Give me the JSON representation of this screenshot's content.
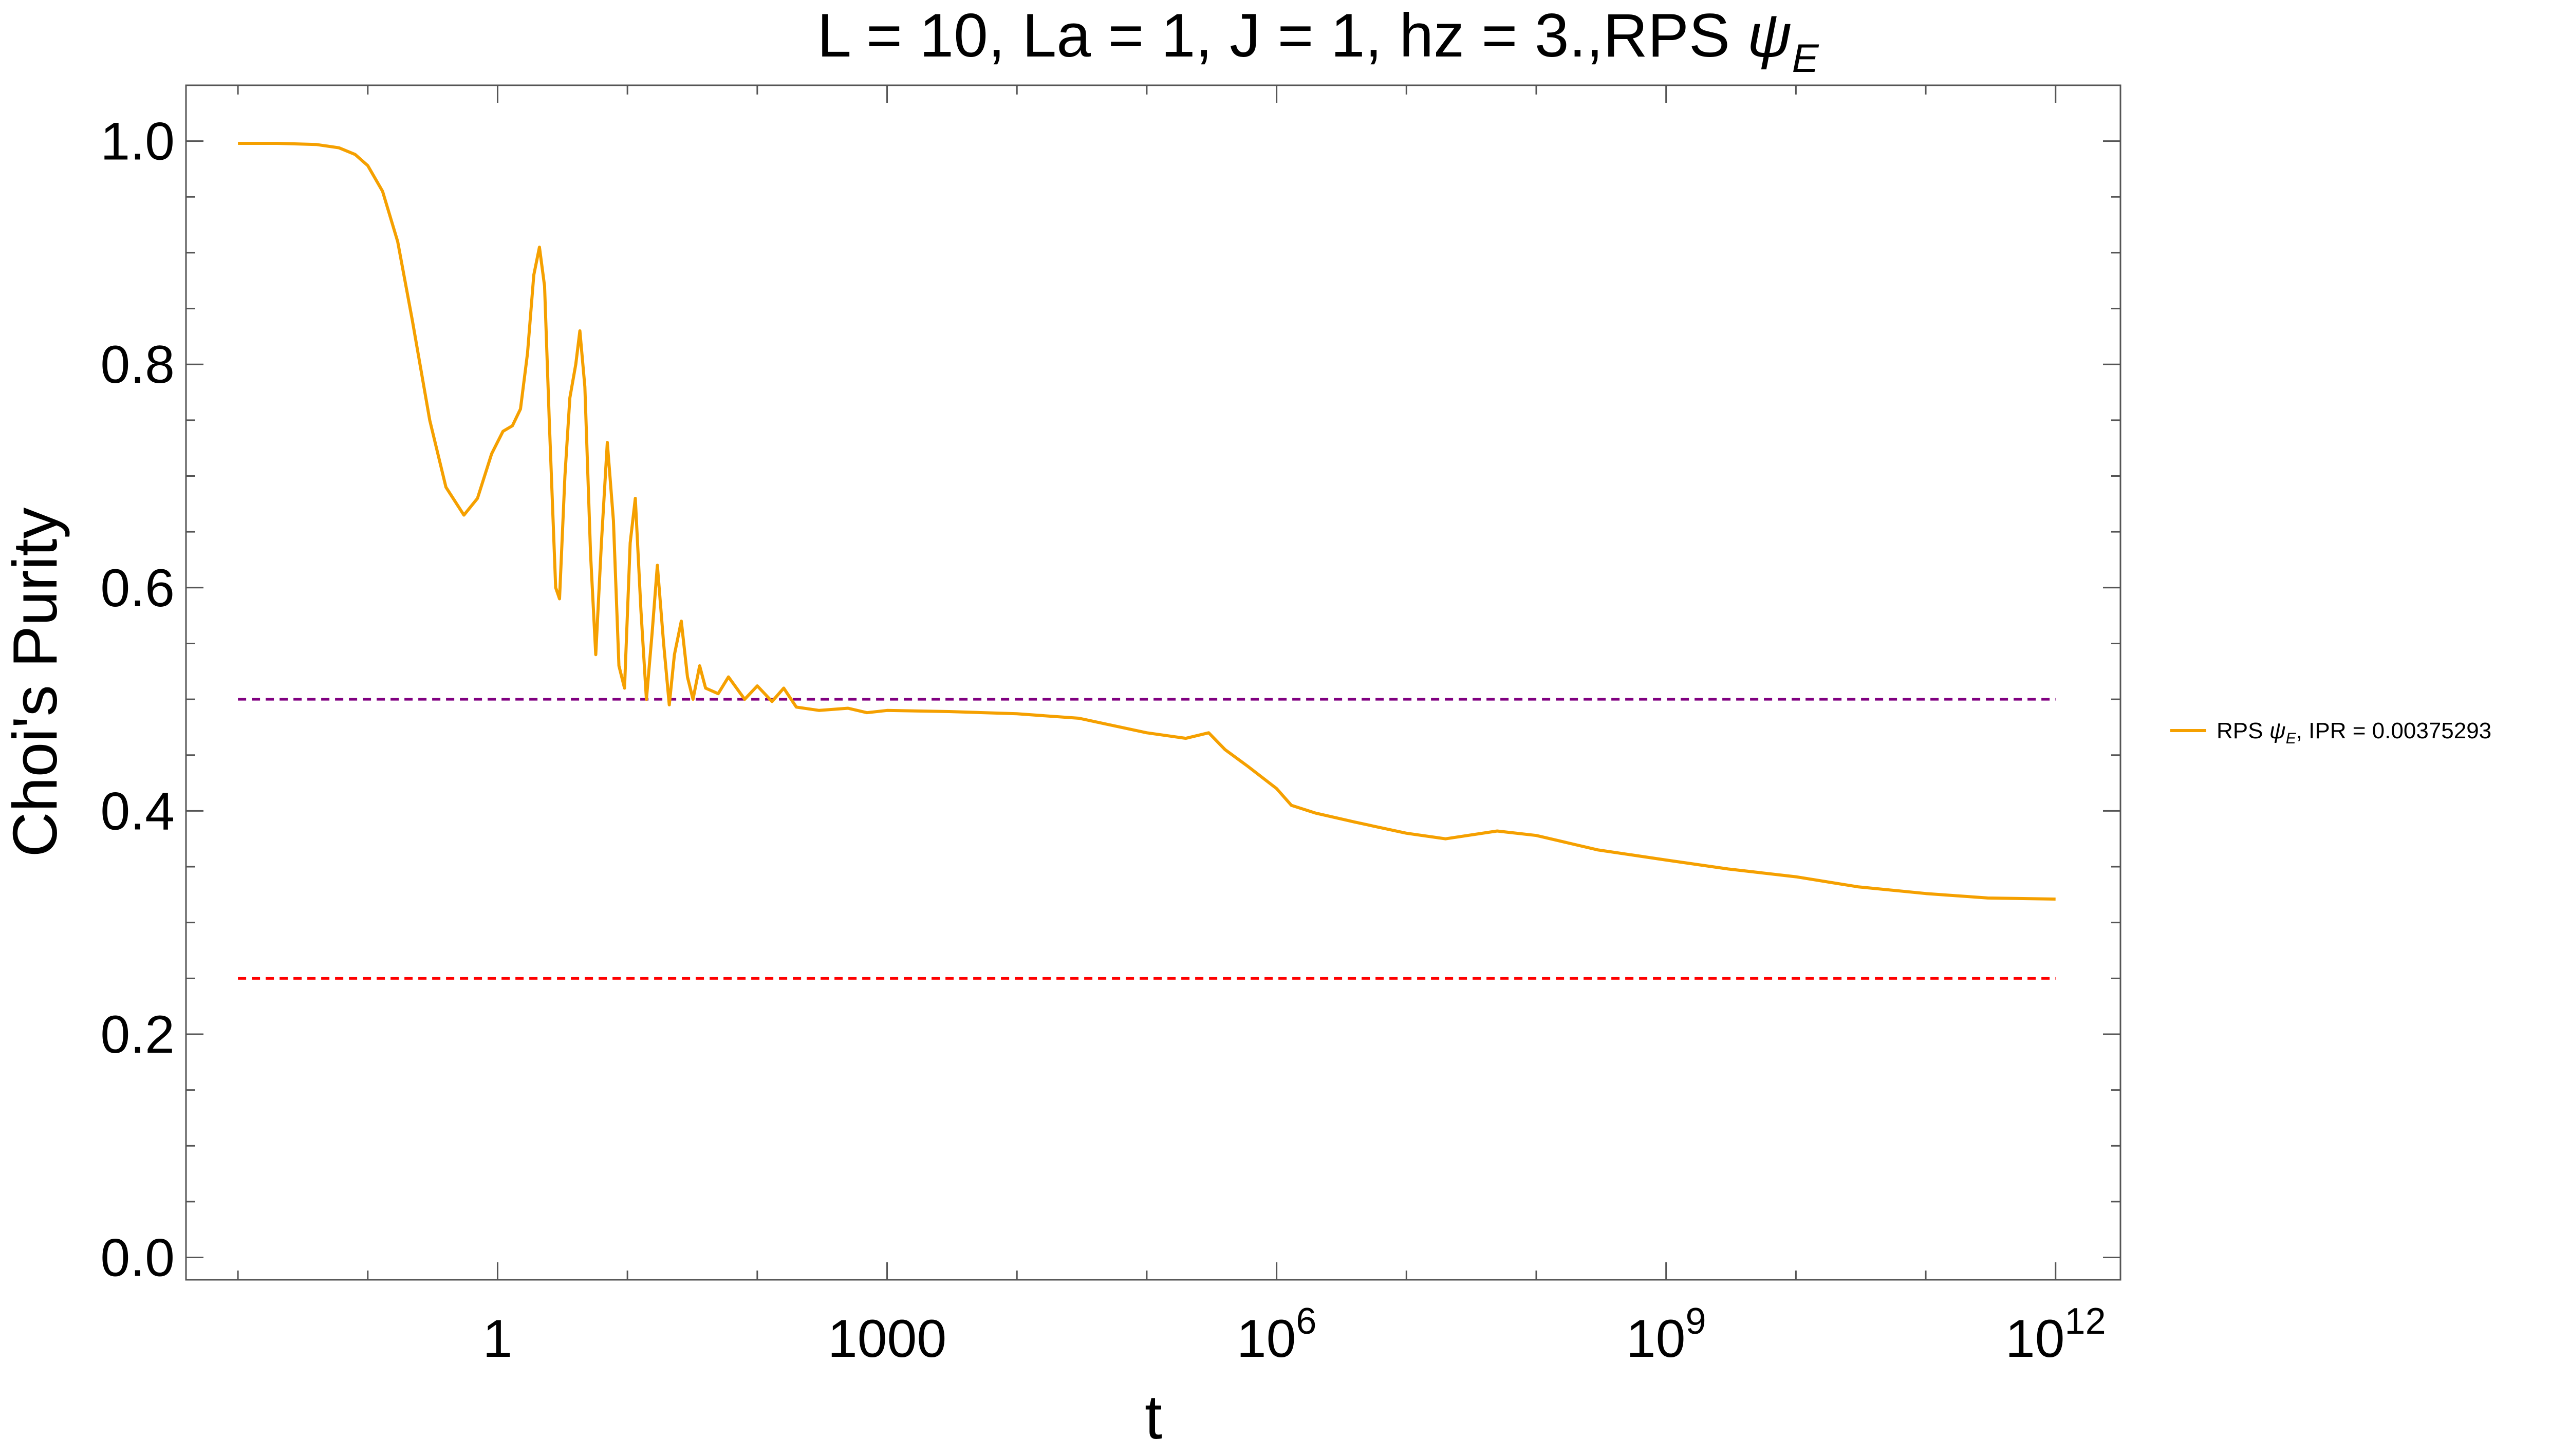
{
  "chart_data": {
    "type": "line",
    "title": {
      "prefix": "L = 10, La = 1, J = 1, hz = 3.,RPS ",
      "symbol": "ψ",
      "subscript": "E"
    },
    "xlabel": "t",
    "ylabel": "Choi's Purity",
    "x_scale": "log10",
    "xlim": [
      0.00398,
      3160000000000.0
    ],
    "ylim": [
      -0.02,
      1.05
    ],
    "x_ticks": [
      {
        "value": 1,
        "base": "1",
        "exp": ""
      },
      {
        "value": 1000,
        "base": "1000",
        "exp": ""
      },
      {
        "value": 1000000,
        "base": "10",
        "exp": "6"
      },
      {
        "value": 1000000000,
        "base": "10",
        "exp": "9"
      },
      {
        "value": 1000000000000,
        "base": "10",
        "exp": "12"
      }
    ],
    "y_ticks": [
      {
        "value": 0.0,
        "label": "0.0"
      },
      {
        "value": 0.2,
        "label": "0.2"
      },
      {
        "value": 0.4,
        "label": "0.4"
      },
      {
        "value": 0.6,
        "label": "0.6"
      },
      {
        "value": 0.8,
        "label": "0.8"
      },
      {
        "value": 1.0,
        "label": "1.0"
      }
    ],
    "grid": false,
    "legend": {
      "placement": "right",
      "prefix": "RPS ",
      "symbol": "ψ",
      "subscript": "E",
      "suffix": ", IPR = 0.00375293"
    },
    "series": [
      {
        "color": "#f5a000",
        "points": [
          [
            0.01,
            0.998
          ],
          [
            0.02,
            0.998
          ],
          [
            0.04,
            0.997
          ],
          [
            0.06,
            0.994
          ],
          [
            0.08,
            0.988
          ],
          [
            0.1,
            0.978
          ],
          [
            0.13,
            0.955
          ],
          [
            0.17,
            0.91
          ],
          [
            0.22,
            0.84
          ],
          [
            0.3,
            0.75
          ],
          [
            0.4,
            0.69
          ],
          [
            0.55,
            0.665
          ],
          [
            0.7,
            0.68
          ],
          [
            0.9,
            0.72
          ],
          [
            1.1,
            0.74
          ],
          [
            1.3,
            0.745
          ],
          [
            1.5,
            0.76
          ],
          [
            1.7,
            0.81
          ],
          [
            1.9,
            0.88
          ],
          [
            2.1,
            0.905
          ],
          [
            2.3,
            0.87
          ],
          [
            2.5,
            0.75
          ],
          [
            2.8,
            0.6
          ],
          [
            3.0,
            0.59
          ],
          [
            3.3,
            0.7
          ],
          [
            3.6,
            0.77
          ],
          [
            4.0,
            0.8
          ],
          [
            4.3,
            0.83
          ],
          [
            4.7,
            0.78
          ],
          [
            5.2,
            0.63
          ],
          [
            5.7,
            0.54
          ],
          [
            6.3,
            0.64
          ],
          [
            7.0,
            0.73
          ],
          [
            7.8,
            0.66
          ],
          [
            8.6,
            0.53
          ],
          [
            9.5,
            0.51
          ],
          [
            10.5,
            0.64
          ],
          [
            11.5,
            0.68
          ],
          [
            12.7,
            0.58
          ],
          [
            14,
            0.5
          ],
          [
            15.5,
            0.56
          ],
          [
            17,
            0.62
          ],
          [
            19,
            0.55
          ],
          [
            21,
            0.495
          ],
          [
            23,
            0.54
          ],
          [
            26,
            0.57
          ],
          [
            29,
            0.52
          ],
          [
            32,
            0.5
          ],
          [
            36,
            0.53
          ],
          [
            40,
            0.51
          ],
          [
            50,
            0.505
          ],
          [
            60,
            0.52
          ],
          [
            80,
            0.5
          ],
          [
            100,
            0.512
          ],
          [
            130,
            0.498
          ],
          [
            160,
            0.51
          ],
          [
            200,
            0.493
          ],
          [
            300,
            0.49
          ],
          [
            500,
            0.492
          ],
          [
            700,
            0.488
          ],
          [
            1000,
            0.49
          ],
          [
            3000,
            0.489
          ],
          [
            10000,
            0.487
          ],
          [
            30000,
            0.483
          ],
          [
            100000,
            0.47
          ],
          [
            200000,
            0.465
          ],
          [
            300000,
            0.47
          ],
          [
            400000,
            0.455
          ],
          [
            600000,
            0.44
          ],
          [
            1000000,
            0.42
          ],
          [
            1300000,
            0.405
          ],
          [
            2000000,
            0.398
          ],
          [
            4000000,
            0.39
          ],
          [
            10000000,
            0.38
          ],
          [
            20000000,
            0.375
          ],
          [
            50000000,
            0.382
          ],
          [
            100000000,
            0.378
          ],
          [
            300000000,
            0.365
          ],
          [
            1000000000,
            0.356
          ],
          [
            3000000000,
            0.348
          ],
          [
            10000000000,
            0.341
          ],
          [
            30000000000,
            0.332
          ],
          [
            100000000000,
            0.326
          ],
          [
            300000000000,
            0.322
          ],
          [
            1000000000000,
            0.321
          ]
        ]
      }
    ],
    "reference_lines": [
      {
        "y": 0.5,
        "color": "#800080",
        "style": "dashed"
      },
      {
        "y": 0.25,
        "color": "#ff0000",
        "style": "dashed"
      }
    ]
  }
}
